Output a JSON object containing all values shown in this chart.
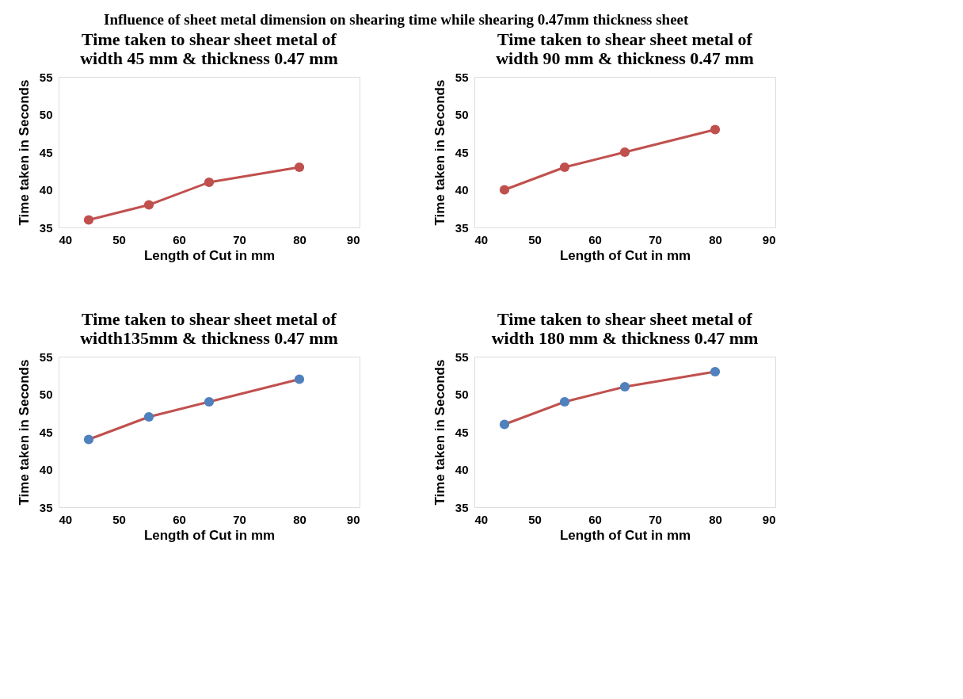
{
  "chart_data": [
    {
      "type": "line",
      "title": "Time taken to shear sheet metal of width 45 mm & thickness 0.47 mm",
      "annotations": [
        "Influence of sheet metal dimension on shearing time while shearing 0.47mm thickness sheet"
      ],
      "xlabel": "Length of Cut in mm",
      "ylabel": "Time taken in Seconds",
      "x": [
        45,
        55,
        65,
        80
      ],
      "xlim": [
        40,
        90
      ],
      "xticks": [
        40,
        50,
        60,
        70,
        80,
        90
      ],
      "ylim": [
        35,
        55
      ],
      "yticks": [
        35,
        40,
        45,
        50,
        55
      ],
      "marker": "circle",
      "series": [
        {
          "color": "#c0504d",
          "values": [
            36,
            38,
            41,
            43
          ]
        }
      ]
    },
    {
      "type": "line",
      "title": "Time taken to shear sheet metal of width 90 mm & thickness 0.47 mm",
      "xlabel": "Length of Cut in mm",
      "ylabel": "Time taken in Seconds",
      "x": [
        45,
        55,
        65,
        80
      ],
      "xlim": [
        40,
        90
      ],
      "xticks": [
        40,
        50,
        60,
        70,
        80,
        90
      ],
      "ylim": [
        35,
        55
      ],
      "yticks": [
        35,
        40,
        45,
        50,
        55
      ],
      "marker": "circle",
      "series": [
        {
          "color": "#c0504d",
          "values": [
            40,
            43,
            45,
            48
          ]
        }
      ]
    },
    {
      "type": "line",
      "title": "Time taken to shear sheet metal of width135mm & thickness 0.47 mm",
      "xlabel": "Length of Cut in mm",
      "ylabel": "Time taken in Seconds",
      "x": [
        45,
        55,
        65,
        80
      ],
      "xlim": [
        40,
        90
      ],
      "xticks": [
        40,
        50,
        60,
        70,
        80,
        90
      ],
      "ylim": [
        35,
        55
      ],
      "yticks": [
        35,
        40,
        45,
        50,
        55
      ],
      "marker": "circle",
      "series": [
        {
          "color": "#c0504d",
          "colors": [
            "#4f81bd",
            "#4f81bd",
            "#4f81bd",
            "#4f81bd"
          ],
          "values": [
            44,
            47,
            49,
            52
          ]
        }
      ]
    },
    {
      "type": "line",
      "title": "Time taken to shear sheet metal of width 180 mm & thickness 0.47 mm",
      "xlabel": "Length of Cut in mm",
      "ylabel": "Time taken in Seconds",
      "x": [
        45,
        55,
        65,
        80
      ],
      "xlim": [
        40,
        90
      ],
      "xticks": [
        40,
        50,
        60,
        70,
        80,
        90
      ],
      "ylim": [
        35,
        55
      ],
      "yticks": [
        35,
        40,
        45,
        50,
        55
      ],
      "marker": "circle",
      "series": [
        {
          "color": "#c0504d",
          "colors": [
            "#4f81bd",
            "#4f81bd",
            "#4f81bd",
            "#4f81bd"
          ],
          "values": [
            46,
            49,
            51,
            53
          ]
        }
      ]
    }
  ]
}
